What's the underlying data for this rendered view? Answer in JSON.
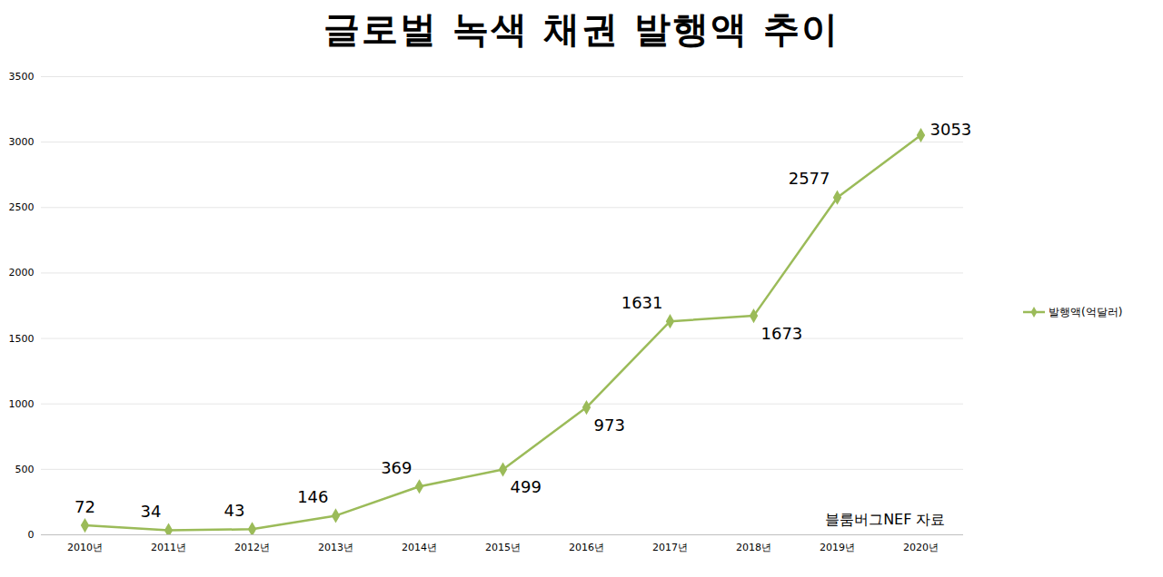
{
  "chart_data": {
    "type": "line",
    "title": "글로벌 녹색 채권 발행액 추이",
    "categories": [
      "2010년",
      "2011년",
      "2012년",
      "2013년",
      "2014년",
      "2015년",
      "2016년",
      "2017년",
      "2018년",
      "2019년",
      "2020년"
    ],
    "series": [
      {
        "name": "발행액(억달러)",
        "color": "#9bbb59",
        "marker": "diamond",
        "values": [
          72,
          34,
          43,
          146,
          369,
          499,
          973,
          1631,
          1673,
          2577,
          3053
        ]
      }
    ],
    "ylim": [
      0,
      3500
    ],
    "yticks": [
      0,
      500,
      1000,
      1500,
      2000,
      2500,
      3000,
      3500
    ],
    "grid": true,
    "legend": "right",
    "data_labels": true,
    "annotations": [
      "블룸버그NEF 자료"
    ]
  }
}
